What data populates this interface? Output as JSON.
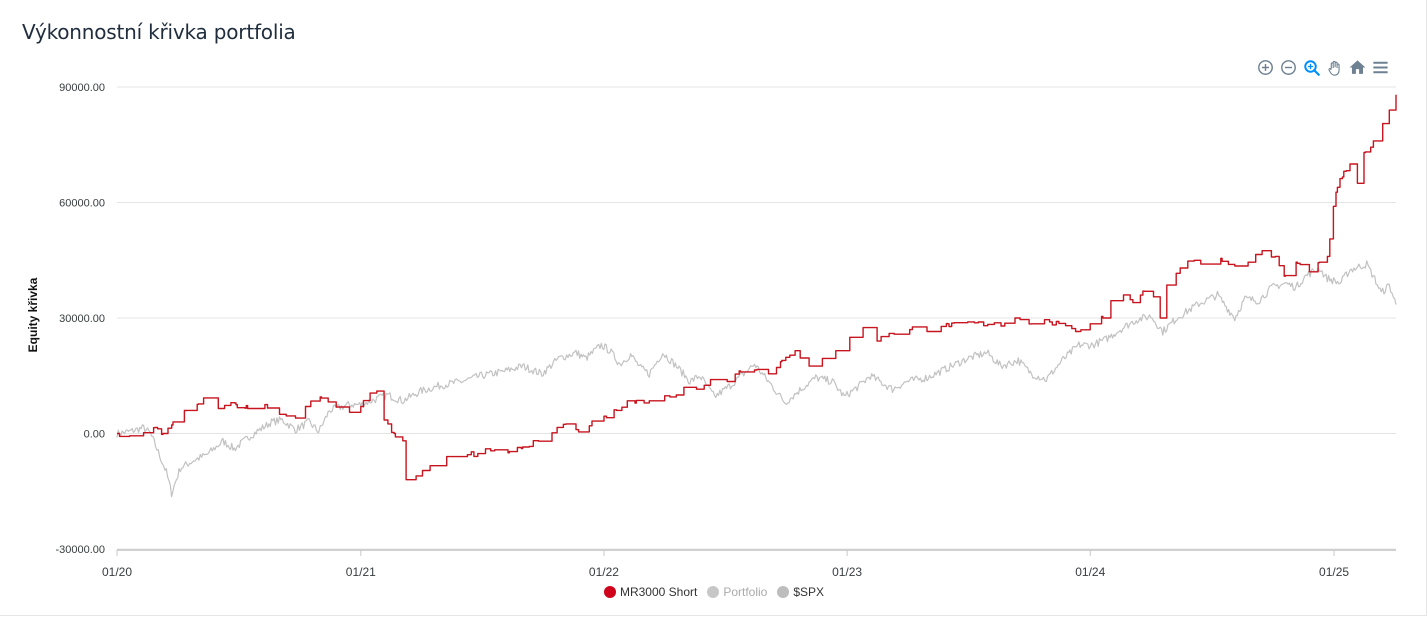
{
  "header": {
    "title": "Výkonnostní křivka portfolia"
  },
  "toolbar": {
    "items": [
      {
        "name": "zoom-in-icon",
        "icon": "zoom-in"
      },
      {
        "name": "zoom-out-icon",
        "icon": "zoom-out"
      },
      {
        "name": "zoom-select-icon",
        "icon": "magnifier"
      },
      {
        "name": "pan-icon",
        "icon": "hand"
      },
      {
        "name": "reset-home-icon",
        "icon": "home"
      },
      {
        "name": "menu-icon",
        "icon": "hamburger"
      }
    ],
    "colors": {
      "default": "#6e8192",
      "active": "#008ffb"
    }
  },
  "chart_data": {
    "type": "line",
    "title": "Výkonnostní křivka portfolia",
    "ylabel": "Equity křivka",
    "xlabel": "",
    "ylim": [
      -30000,
      90000
    ],
    "yticks": [
      {
        "value": 90000,
        "label": "90000.00"
      },
      {
        "value": 60000,
        "label": "60000.00"
      },
      {
        "value": 30000,
        "label": "30000.00"
      },
      {
        "value": 0,
        "label": "0.00"
      },
      {
        "value": -30000,
        "label": "-30000.00"
      }
    ],
    "xlim": [
      "2020-01-01",
      "2025-04-04"
    ],
    "xticks": [
      {
        "date": "2020-01-01",
        "label": "01/20"
      },
      {
        "date": "2021-01-01",
        "label": "01/21"
      },
      {
        "date": "2022-01-01",
        "label": "01/22"
      },
      {
        "date": "2023-01-01",
        "label": "01/23"
      },
      {
        "date": "2024-01-01",
        "label": "01/24"
      },
      {
        "date": "2025-01-01",
        "label": "01/25"
      }
    ],
    "grid": true,
    "legend_position": "bottom",
    "series": [
      {
        "name": "MR3000 Short",
        "color": "#c8141e",
        "legend_color": "#d0021b",
        "visible": true,
        "points": [
          [
            "2020-01-01",
            0
          ],
          [
            "2020-01-20",
            -600
          ],
          [
            "2020-02-10",
            200
          ],
          [
            "2020-02-25",
            1500
          ],
          [
            "2020-03-10",
            0
          ],
          [
            "2020-03-25",
            3000
          ],
          [
            "2020-04-15",
            6000
          ],
          [
            "2020-05-10",
            8500
          ],
          [
            "2020-06-01",
            6500
          ],
          [
            "2020-06-20",
            8000
          ],
          [
            "2020-07-15",
            6500
          ],
          [
            "2020-08-10",
            7500
          ],
          [
            "2020-09-01",
            5000
          ],
          [
            "2020-09-25",
            4000
          ],
          [
            "2020-10-10",
            7000
          ],
          [
            "2020-11-01",
            9500
          ],
          [
            "2020-11-25",
            7000
          ],
          [
            "2020-12-15",
            5500
          ],
          [
            "2021-01-01",
            7000
          ],
          [
            "2021-01-15",
            10500
          ],
          [
            "2021-01-25",
            11000
          ],
          [
            "2021-02-05",
            3500
          ],
          [
            "2021-02-20",
            0
          ],
          [
            "2021-03-05",
            -2000
          ],
          [
            "2021-03-10",
            -12000
          ],
          [
            "2021-03-25",
            -11000
          ],
          [
            "2021-04-15",
            -9000
          ],
          [
            "2021-05-10",
            -6000
          ],
          [
            "2021-06-10",
            -5500
          ],
          [
            "2021-07-15",
            -4500
          ],
          [
            "2021-08-10",
            -5000
          ],
          [
            "2021-09-01",
            -3500
          ],
          [
            "2021-09-25",
            -2000
          ],
          [
            "2021-10-15",
            0
          ],
          [
            "2021-11-05",
            2500
          ],
          [
            "2021-11-20",
            1000
          ],
          [
            "2021-12-10",
            2000
          ],
          [
            "2022-01-01",
            4500
          ],
          [
            "2022-01-20",
            6000
          ],
          [
            "2022-02-05",
            8500
          ],
          [
            "2022-03-10",
            8500
          ],
          [
            "2022-04-10",
            9500
          ],
          [
            "2022-05-01",
            12000
          ],
          [
            "2022-05-20",
            11500
          ],
          [
            "2022-06-10",
            14000
          ],
          [
            "2022-07-05",
            13500
          ],
          [
            "2022-07-25",
            16000
          ],
          [
            "2022-08-15",
            16500
          ],
          [
            "2022-09-05",
            15500
          ],
          [
            "2022-09-25",
            19000
          ],
          [
            "2022-10-15",
            21500
          ],
          [
            "2022-11-05",
            17500
          ],
          [
            "2022-11-25",
            19500
          ],
          [
            "2022-12-15",
            21500
          ],
          [
            "2023-01-05",
            25000
          ],
          [
            "2023-01-25",
            27500
          ],
          [
            "2023-02-15",
            24000
          ],
          [
            "2023-03-05",
            26000
          ],
          [
            "2023-04-05",
            27000
          ],
          [
            "2023-05-01",
            26500
          ],
          [
            "2023-06-01",
            28500
          ],
          [
            "2023-07-01",
            29000
          ],
          [
            "2023-07-25",
            28000
          ],
          [
            "2023-08-20",
            28500
          ],
          [
            "2023-09-10",
            30000
          ],
          [
            "2023-10-05",
            28500
          ],
          [
            "2023-11-01",
            29000
          ],
          [
            "2023-11-25",
            28000
          ],
          [
            "2023-12-10",
            26500
          ],
          [
            "2024-01-01",
            28500
          ],
          [
            "2024-01-20",
            30000
          ],
          [
            "2024-02-01",
            34500
          ],
          [
            "2024-02-20",
            36000
          ],
          [
            "2024-03-05",
            34000
          ],
          [
            "2024-03-20",
            37000
          ],
          [
            "2024-04-05",
            35500
          ],
          [
            "2024-04-15",
            30000
          ],
          [
            "2024-04-25",
            39000
          ],
          [
            "2024-05-15",
            43000
          ],
          [
            "2024-06-05",
            45000
          ],
          [
            "2024-06-25",
            44000
          ],
          [
            "2024-07-15",
            45500
          ],
          [
            "2024-08-05",
            43500
          ],
          [
            "2024-08-25",
            44500
          ],
          [
            "2024-09-15",
            47000
          ],
          [
            "2024-10-05",
            46000
          ],
          [
            "2024-10-20",
            41000
          ],
          [
            "2024-11-05",
            44500
          ],
          [
            "2024-11-25",
            42000
          ],
          [
            "2024-12-10",
            44500
          ],
          [
            "2024-12-22",
            46000
          ],
          [
            "2024-12-31",
            59000
          ],
          [
            "2025-01-10",
            66500
          ],
          [
            "2025-01-25",
            70000
          ],
          [
            "2025-02-05",
            65000
          ],
          [
            "2025-02-15",
            73000
          ],
          [
            "2025-03-01",
            76000
          ],
          [
            "2025-03-15",
            80500
          ],
          [
            "2025-03-25",
            84000
          ],
          [
            "2025-04-04",
            88000
          ]
        ]
      },
      {
        "name": "Portfolio",
        "color": "#c7c7c7",
        "visible": false
      },
      {
        "name": "$SPX",
        "color": "#c2c2c2",
        "legend_color": "#bdbdbd",
        "visible": true,
        "points": [
          [
            "2020-01-01",
            0
          ],
          [
            "2020-01-20",
            500
          ],
          [
            "2020-02-10",
            1500
          ],
          [
            "2020-02-20",
            0
          ],
          [
            "2020-03-01",
            -4000
          ],
          [
            "2020-03-15",
            -10000
          ],
          [
            "2020-03-23",
            -15500
          ],
          [
            "2020-04-05",
            -9000
          ],
          [
            "2020-04-25",
            -7000
          ],
          [
            "2020-05-15",
            -5500
          ],
          [
            "2020-06-08",
            -2000
          ],
          [
            "2020-06-25",
            -4000
          ],
          [
            "2020-07-20",
            -500
          ],
          [
            "2020-08-20",
            3000
          ],
          [
            "2020-09-05",
            3500
          ],
          [
            "2020-09-25",
            1000
          ],
          [
            "2020-10-15",
            3000
          ],
          [
            "2020-10-30",
            500
          ],
          [
            "2020-11-15",
            6000
          ],
          [
            "2020-12-15",
            7500
          ],
          [
            "2021-01-01",
            7500
          ],
          [
            "2021-01-25",
            9000
          ],
          [
            "2021-02-10",
            10000
          ],
          [
            "2021-03-05",
            8500
          ],
          [
            "2021-04-01",
            11000
          ],
          [
            "2021-05-01",
            12500
          ],
          [
            "2021-06-01",
            13500
          ],
          [
            "2021-07-01",
            15000
          ],
          [
            "2021-08-01",
            16000
          ],
          [
            "2021-09-01",
            17500
          ],
          [
            "2021-09-30",
            15500
          ],
          [
            "2021-10-25",
            19500
          ],
          [
            "2021-11-20",
            21000
          ],
          [
            "2021-12-05",
            19500
          ],
          [
            "2021-12-28",
            23000
          ],
          [
            "2022-01-10",
            21500
          ],
          [
            "2022-01-25",
            18000
          ],
          [
            "2022-02-10",
            20500
          ],
          [
            "2022-02-25",
            17000
          ],
          [
            "2022-03-10",
            15500
          ],
          [
            "2022-03-30",
            21000
          ],
          [
            "2022-04-20",
            17500
          ],
          [
            "2022-05-10",
            13500
          ],
          [
            "2022-05-25",
            15000
          ],
          [
            "2022-06-16",
            9500
          ],
          [
            "2022-07-10",
            12500
          ],
          [
            "2022-08-15",
            18000
          ],
          [
            "2022-09-05",
            13500
          ],
          [
            "2022-09-30",
            8000
          ],
          [
            "2022-10-20",
            11000
          ],
          [
            "2022-11-15",
            14500
          ],
          [
            "2022-12-10",
            13500
          ],
          [
            "2022-12-28",
            9500
          ],
          [
            "2023-01-20",
            12500
          ],
          [
            "2023-02-05",
            15000
          ],
          [
            "2023-03-10",
            11500
          ],
          [
            "2023-04-01",
            13500
          ],
          [
            "2023-05-01",
            14500
          ],
          [
            "2023-06-01",
            17000
          ],
          [
            "2023-07-01",
            19500
          ],
          [
            "2023-07-30",
            21000
          ],
          [
            "2023-08-20",
            17500
          ],
          [
            "2023-09-15",
            19000
          ],
          [
            "2023-10-05",
            15500
          ],
          [
            "2023-10-27",
            14000
          ],
          [
            "2023-11-20",
            19000
          ],
          [
            "2023-12-15",
            23000
          ],
          [
            "2024-01-05",
            23000
          ],
          [
            "2024-01-25",
            24500
          ],
          [
            "2024-02-15",
            27000
          ],
          [
            "2024-03-10",
            29500
          ],
          [
            "2024-04-01",
            30500
          ],
          [
            "2024-04-19",
            26500
          ],
          [
            "2024-05-10",
            30000
          ],
          [
            "2024-06-10",
            33500
          ],
          [
            "2024-07-10",
            36000
          ],
          [
            "2024-07-25",
            32500
          ],
          [
            "2024-08-05",
            30000
          ],
          [
            "2024-08-20",
            35000
          ],
          [
            "2024-09-10",
            34500
          ],
          [
            "2024-09-30",
            38000
          ],
          [
            "2024-10-20",
            39000
          ],
          [
            "2024-11-05",
            38000
          ],
          [
            "2024-11-20",
            41000
          ],
          [
            "2024-12-10",
            43000
          ],
          [
            "2024-12-20",
            40500
          ],
          [
            "2025-01-10",
            39000
          ],
          [
            "2025-01-25",
            42500
          ],
          [
            "2025-02-19",
            44000
          ],
          [
            "2025-03-05",
            39500
          ],
          [
            "2025-03-13",
            36500
          ],
          [
            "2025-03-25",
            38500
          ],
          [
            "2025-04-04",
            33500
          ]
        ]
      }
    ]
  }
}
